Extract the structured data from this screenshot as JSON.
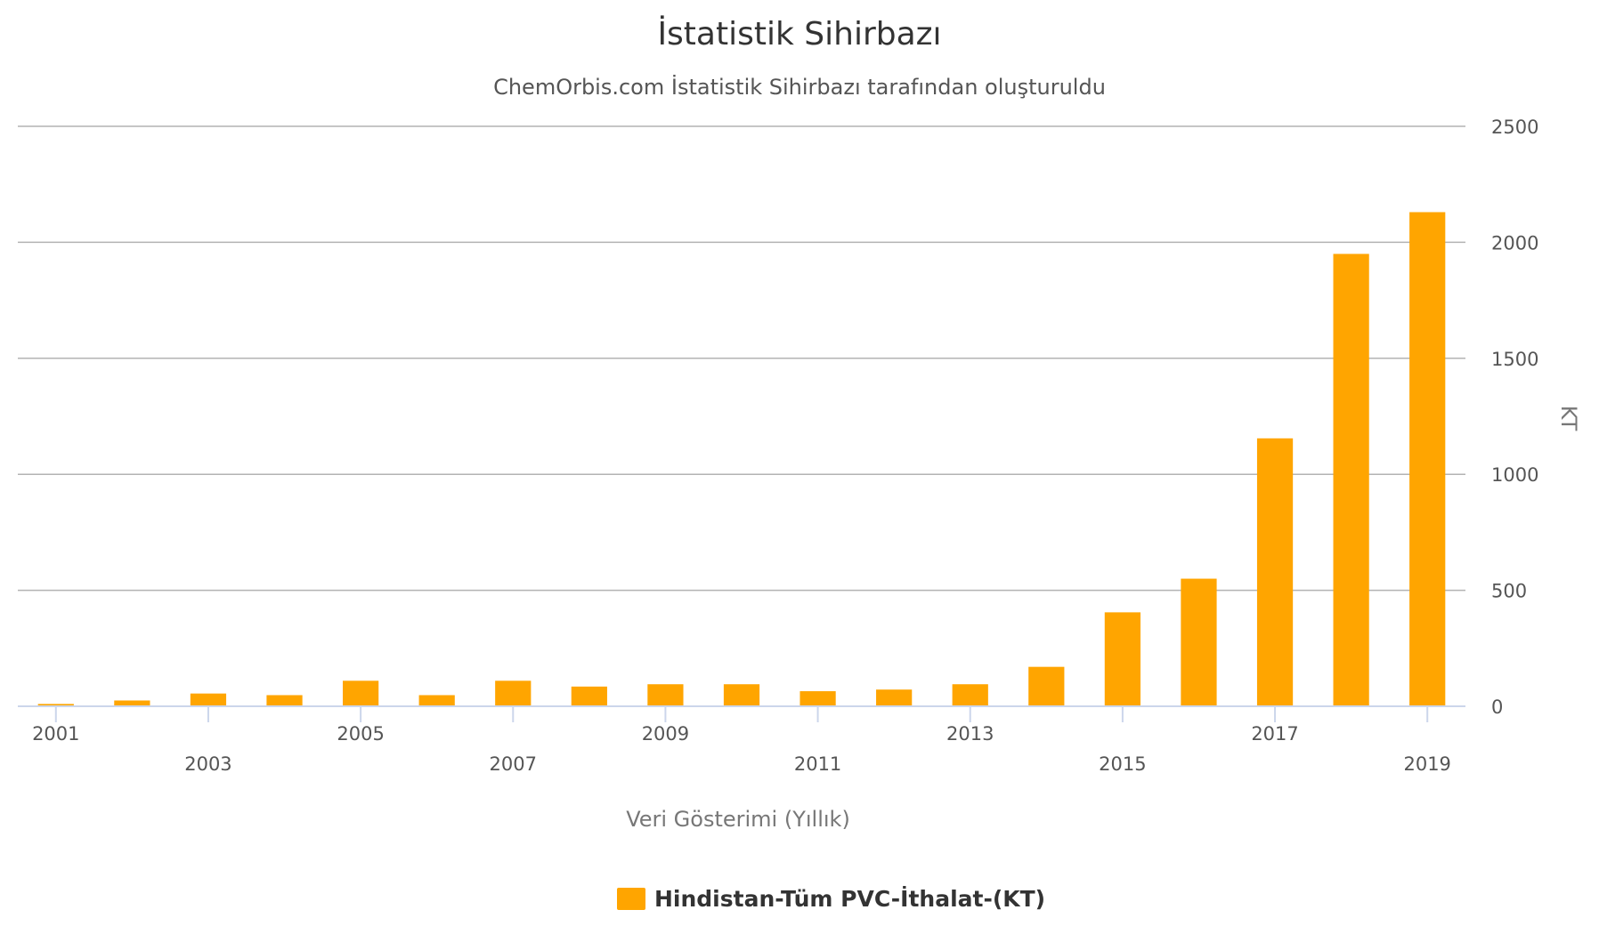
{
  "chart_data": {
    "type": "bar",
    "title": "İstatistik Sihirbazı",
    "subtitle": "ChemOrbis.com İstatistik Sihirbazı tarafından oluşturuldu",
    "xlabel": "Veri Gösterimi (Yıllık)",
    "ylabel": "KT",
    "categories": [
      "2001",
      "2002",
      "2003",
      "2004",
      "2005",
      "2006",
      "2007",
      "2008",
      "2009",
      "2010",
      "2011",
      "2012",
      "2013",
      "2014",
      "2015",
      "2016",
      "2017",
      "2018",
      "2019"
    ],
    "x_tick_labels": [
      "2001",
      "2003",
      "2005",
      "2007",
      "2009",
      "2011",
      "2013",
      "2015",
      "2017",
      "2019"
    ],
    "series": [
      {
        "name": "Hindistan-Tüm PVC-İthalat-(KT)",
        "color": "#FFA500",
        "values": [
          10,
          25,
          55,
          48,
          110,
          48,
          110,
          85,
          95,
          95,
          65,
          72,
          95,
          170,
          405,
          550,
          1155,
          1950,
          2130
        ]
      }
    ],
    "ylim": [
      0,
      2500
    ],
    "y_ticks": [
      0,
      500,
      1000,
      1500,
      2000,
      2500
    ],
    "y_axis_position": "right",
    "grid": true,
    "legend_position": "bottom-center"
  }
}
